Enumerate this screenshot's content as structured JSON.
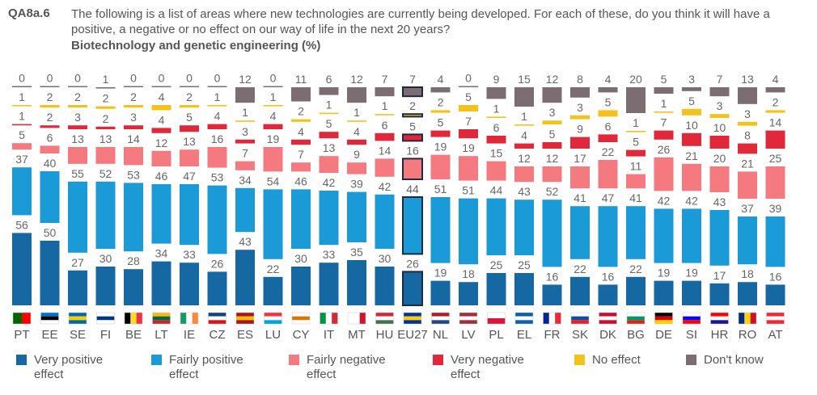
{
  "question_id": "QA8a.6",
  "question": "The following is a list of areas where new technologies are currently being developed. For each of these, do you think it will have a positive, a negative or no effect on our way of life in the next 20 years?",
  "chart_data": {
    "type": "bar",
    "stacked": true,
    "title": "Biotechnology and genetic engineering (%)",
    "categories": [
      "PT",
      "EE",
      "SE",
      "FI",
      "BE",
      "LT",
      "IE",
      "CZ",
      "ES",
      "LU",
      "CY",
      "IT",
      "MT",
      "HU",
      "EU27",
      "NL",
      "LV",
      "PL",
      "EL",
      "FR",
      "SK",
      "DK",
      "BG",
      "DE",
      "SI",
      "HR",
      "RO",
      "AT"
    ],
    "highlight": "EU27",
    "series": [
      {
        "name": "Very positive effect",
        "color": "#1668a3",
        "values": [
          56,
          50,
          27,
          30,
          28,
          34,
          33,
          26,
          43,
          22,
          30,
          33,
          35,
          30,
          26,
          19,
          18,
          25,
          25,
          16,
          22,
          16,
          22,
          19,
          19,
          17,
          18,
          16
        ]
      },
      {
        "name": "Fairly positive effect",
        "color": "#1a9ad6",
        "values": [
          37,
          40,
          55,
          52,
          53,
          46,
          47,
          53,
          34,
          54,
          46,
          42,
          39,
          42,
          44,
          51,
          51,
          44,
          43,
          52,
          41,
          47,
          41,
          42,
          42,
          43,
          37,
          39
        ]
      },
      {
        "name": "Fairly negative effect",
        "color": "#f47a80",
        "values": [
          5,
          6,
          13,
          13,
          14,
          12,
          13,
          16,
          7,
          19,
          7,
          13,
          9,
          14,
          16,
          19,
          19,
          15,
          12,
          12,
          17,
          22,
          11,
          26,
          21,
          20,
          21,
          25
        ]
      },
      {
        "name": "Very negative effect",
        "color": "#e0283a",
        "values": [
          1,
          2,
          3,
          2,
          3,
          4,
          5,
          4,
          3,
          4,
          4,
          5,
          4,
          6,
          5,
          5,
          7,
          6,
          4,
          5,
          9,
          6,
          5,
          7,
          10,
          10,
          8,
          14
        ]
      },
      {
        "name": "No effect",
        "color": "#f3c21b",
        "values": [
          1,
          2,
          2,
          2,
          2,
          4,
          2,
          1,
          1,
          1,
          2,
          1,
          1,
          1,
          2,
          2,
          5,
          1,
          1,
          3,
          3,
          5,
          1,
          1,
          5,
          3,
          3,
          2
        ]
      },
      {
        "name": "Don't know",
        "color": "#7b6d71",
        "values": [
          0,
          0,
          0,
          1,
          0,
          0,
          0,
          0,
          12,
          0,
          11,
          6,
          12,
          7,
          7,
          4,
          0,
          9,
          15,
          12,
          8,
          4,
          20,
          5,
          3,
          7,
          13,
          4
        ]
      }
    ],
    "flags": [
      [
        "#006600",
        "#ff0000"
      ],
      [
        "#0072ce",
        "#000000",
        "#ffffff"
      ],
      [
        "#006aa7",
        "#fecc00",
        "#006aa7"
      ],
      [
        "#ffffff",
        "#003580",
        "#ffffff"
      ],
      [
        "#000000",
        "#fdda24",
        "#ef3340"
      ],
      [
        "#fdb913",
        "#006a44",
        "#c1272d"
      ],
      [
        "#169b62",
        "#ffffff",
        "#ff883e"
      ],
      [
        "#11457e",
        "#ffffff",
        "#d7141a"
      ],
      [
        "#aa151b",
        "#f1bf00",
        "#aa151b"
      ],
      [
        "#ef3340",
        "#ffffff",
        "#00a3e0"
      ],
      [
        "#ffffff",
        "#d57800",
        "#ffffff"
      ],
      [
        "#009246",
        "#ffffff",
        "#ce2b37"
      ],
      [
        "#ffffff",
        "#ffffff",
        "#cf142b"
      ],
      [
        "#ce2939",
        "#ffffff",
        "#477050"
      ],
      [
        "#003399",
        "#ffcc00",
        "#003399"
      ],
      [
        "#ae1c28",
        "#ffffff",
        "#21468b"
      ],
      [
        "#9e3039",
        "#ffffff",
        "#9e3039"
      ],
      [
        "#ffffff",
        "#dc143c"
      ],
      [
        "#0d5eaf",
        "#ffffff",
        "#0d5eaf"
      ],
      [
        "#002395",
        "#ffffff",
        "#ed2939"
      ],
      [
        "#ffffff",
        "#0b4ea2",
        "#ee1c25"
      ],
      [
        "#c8102e",
        "#ffffff",
        "#c8102e"
      ],
      [
        "#ffffff",
        "#00966e",
        "#d62612"
      ],
      [
        "#000000",
        "#dd0000",
        "#ffce00"
      ],
      [
        "#ffffff",
        "#0000ff",
        "#ff0000"
      ],
      [
        "#ff0000",
        "#ffffff",
        "#171796"
      ],
      [
        "#002b7f",
        "#fcd116",
        "#ce1126"
      ],
      [
        "#ed2939",
        "#ffffff",
        "#ed2939"
      ]
    ],
    "flag_orientation": [
      "v",
      "h",
      "h",
      "h",
      "v",
      "h",
      "v",
      "h",
      "h",
      "h",
      "h",
      "v",
      "v",
      "h",
      "h",
      "h",
      "h",
      "h",
      "h",
      "v",
      "h",
      "h",
      "h",
      "h",
      "h",
      "h",
      "v",
      "h"
    ]
  },
  "legend": [
    {
      "label": "Very positive",
      "label2": "effect"
    },
    {
      "label": "Fairly positive",
      "label2": "effect"
    },
    {
      "label": "Fairly negative",
      "label2": "effect"
    },
    {
      "label": "Very negative",
      "label2": "effect"
    },
    {
      "label": "No effect",
      "label2": ""
    },
    {
      "label": "Don't know",
      "label2": ""
    }
  ]
}
